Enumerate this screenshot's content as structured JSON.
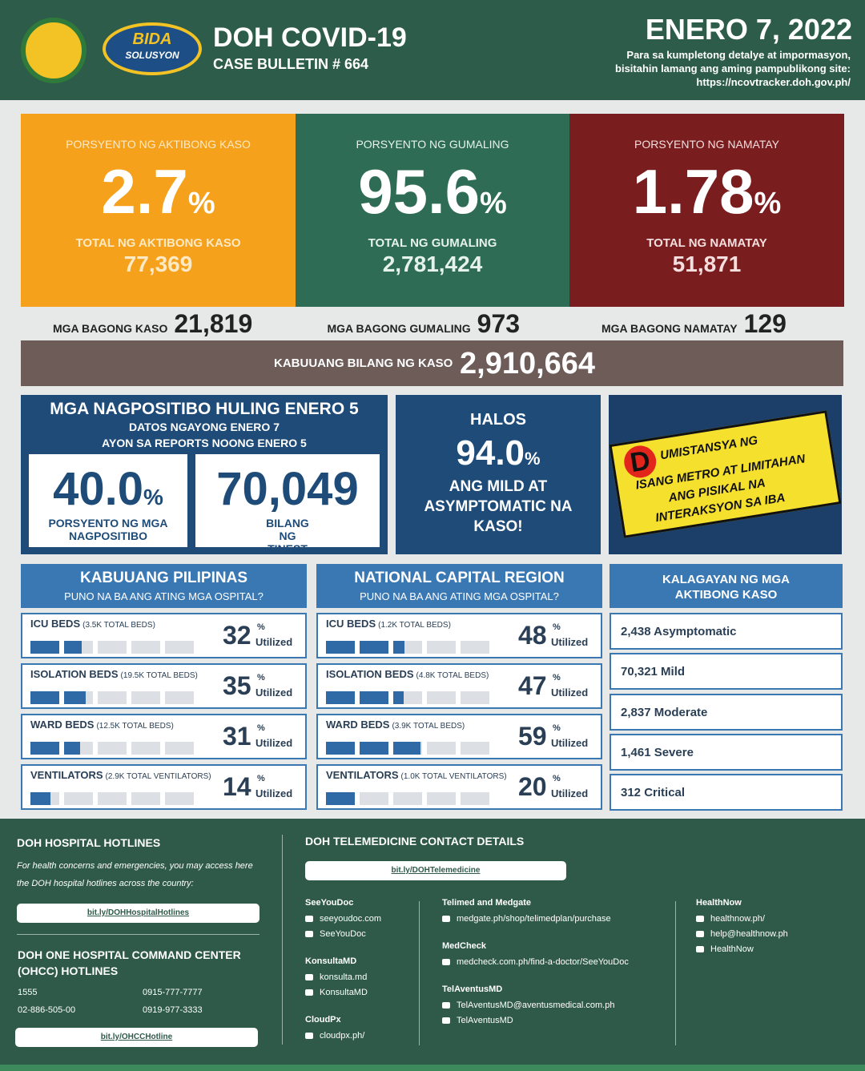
{
  "header": {
    "logo_line1": "BIDA",
    "logo_line2": "SOLUSYON",
    "title": "DOH COVID-19",
    "subtitle": "CASE BULLETIN # 664",
    "date": "ENERO 7, 2022",
    "info_lines": [
      "Para sa kumpletong detalye at impormasyon,",
      "bisitahin lamang ang aming pampublikong site:",
      "https://ncovtracker.doh.gov.ph/"
    ]
  },
  "cards": [
    {
      "label": "PORSYENTO NG AKTIBONG KASO",
      "percent": "2.7",
      "unit": "%",
      "total_label": "TOTAL NG AKTIBONG KASO",
      "total": "77,369"
    },
    {
      "label": "PORSYENTO NG GUMALING",
      "percent": "95.6",
      "unit": "%",
      "total_label": "TOTAL NG GUMALING",
      "total": "2,781,424"
    },
    {
      "label": "PORSYENTO NG NAMATAY",
      "percent": "1.78",
      "unit": "%",
      "total_label": "TOTAL NG NAMATAY",
      "total": "51,871"
    }
  ],
  "new": [
    {
      "label": "MGA BAGONG KASO",
      "value": "21,819"
    },
    {
      "label": "MGA BAGONG GUMALING",
      "value": "973"
    },
    {
      "label": "MGA BAGONG NAMATAY",
      "value": "129"
    }
  ],
  "total_cases": {
    "label": "KABUUANG BILANG NG KASO",
    "value": "2,910,664"
  },
  "positivity": {
    "title": "MGA NAGPOSITIBO HULING ENERO 5",
    "line1": "DATOS NGAYONG ENERO 7",
    "line2": "AYON SA REPORTS NOONG ENERO 5",
    "rate": "40.0",
    "unit": "%",
    "rate_label": "PORSYENTO NG MGA NAGPOSITIBO",
    "tested": "70,049",
    "tested_label": "BILANG NG TINEST"
  },
  "mild": {
    "top": "HALOS",
    "percent": "94.0",
    "unit": "%",
    "text": "ANG MILD AT ASYMPTOMATIC NA KASO!"
  },
  "banner": {
    "initial": "D",
    "line1": "UMISTANSYA NG",
    "line2": "ISANG METRO AT LIMITAHAN",
    "line3": "ANG PISIKAL NA",
    "line4": "INTERAKSYON SA IBA"
  },
  "hospitals": [
    {
      "title": "KABUUANG PILIPINAS",
      "subtitle": "PUNO NA BA ANG ATING MGA OSPITAL?",
      "rows": [
        {
          "name": "ICU BEDS",
          "capacity": "(3.5K TOTAL BEDS)",
          "percent": 32
        },
        {
          "name": "ISOLATION BEDS",
          "capacity": "(19.5K TOTAL BEDS)",
          "percent": 35
        },
        {
          "name": "WARD BEDS",
          "capacity": "(12.5K TOTAL BEDS)",
          "percent": 31
        },
        {
          "name": "VENTILATORS",
          "capacity": "(2.9K TOTAL VENTILATORS)",
          "percent": 14
        }
      ]
    },
    {
      "title": "NATIONAL CAPITAL REGION",
      "subtitle": "PUNO NA BA ANG ATING MGA OSPITAL?",
      "rows": [
        {
          "name": "ICU BEDS",
          "capacity": "(1.2K TOTAL BEDS)",
          "percent": 48
        },
        {
          "name": "ISOLATION BEDS",
          "capacity": "(4.8K TOTAL BEDS)",
          "percent": 47
        },
        {
          "name": "WARD BEDS",
          "capacity": "(3.9K TOTAL BEDS)",
          "percent": 59
        },
        {
          "name": "VENTILATORS",
          "capacity": "(1.0K TOTAL VENTILATORS)",
          "percent": 20
        }
      ]
    }
  ],
  "utilized_unit": "%",
  "utilized_label": "Utilized",
  "status": {
    "title": "KALAGAYAN NG MGA AKTIBONG KASO",
    "items": [
      "2,438 Asymptomatic",
      "70,321 Mild",
      "2,837 Moderate",
      "1,461 Severe",
      "312 Critical"
    ]
  },
  "footer": {
    "hotlines": {
      "title": "DOH HOSPITAL HOTLINES",
      "note": "For health concerns and emergencies, you may access here the DOH hospital hotlines across the country:",
      "link": "bit.ly/DOHHospitalHotlines",
      "ohcc_title": "DOH ONE HOSPITAL COMMAND CENTER (OHCC) HOTLINES",
      "numbers": [
        "1555",
        "02-886-505-00",
        "0915-777-7777",
        "0919-977-3333"
      ],
      "ohcc_link": "bit.ly/OHCCHotline"
    },
    "telemedicine": {
      "title": "DOH TELEMEDICINE CONTACT DETAILS",
      "link": "bit.ly/DOHTelemedicine",
      "columns": [
        [
          {
            "name": "SeeYouDoc",
            "contacts": [
              "seeyoudoc.com",
              "SeeYouDoc"
            ]
          },
          {
            "name": "KonsultaMD",
            "contacts": [
              "konsulta.md",
              "KonsultaMD"
            ]
          },
          {
            "name": "CloudPx",
            "contacts": [
              "cloudpx.ph/"
            ]
          }
        ],
        [
          {
            "name": "Telimed and Medgate",
            "contacts": [
              "medgate.ph/shop/telimedplan/purchase"
            ]
          },
          {
            "name": "MedCheck",
            "contacts": [
              "medcheck.com.ph/find-a-doctor/SeeYouDoc"
            ]
          },
          {
            "name": "TelAventusMD",
            "contacts": [
              "TelAventusMD@aventusmedical.com.ph",
              "TelAventusMD"
            ]
          }
        ],
        [
          {
            "name": "HealthNow",
            "contacts": [
              "healthnow.ph/",
              "help@healthnow.ph",
              "HealthNow"
            ]
          }
        ]
      ]
    }
  }
}
